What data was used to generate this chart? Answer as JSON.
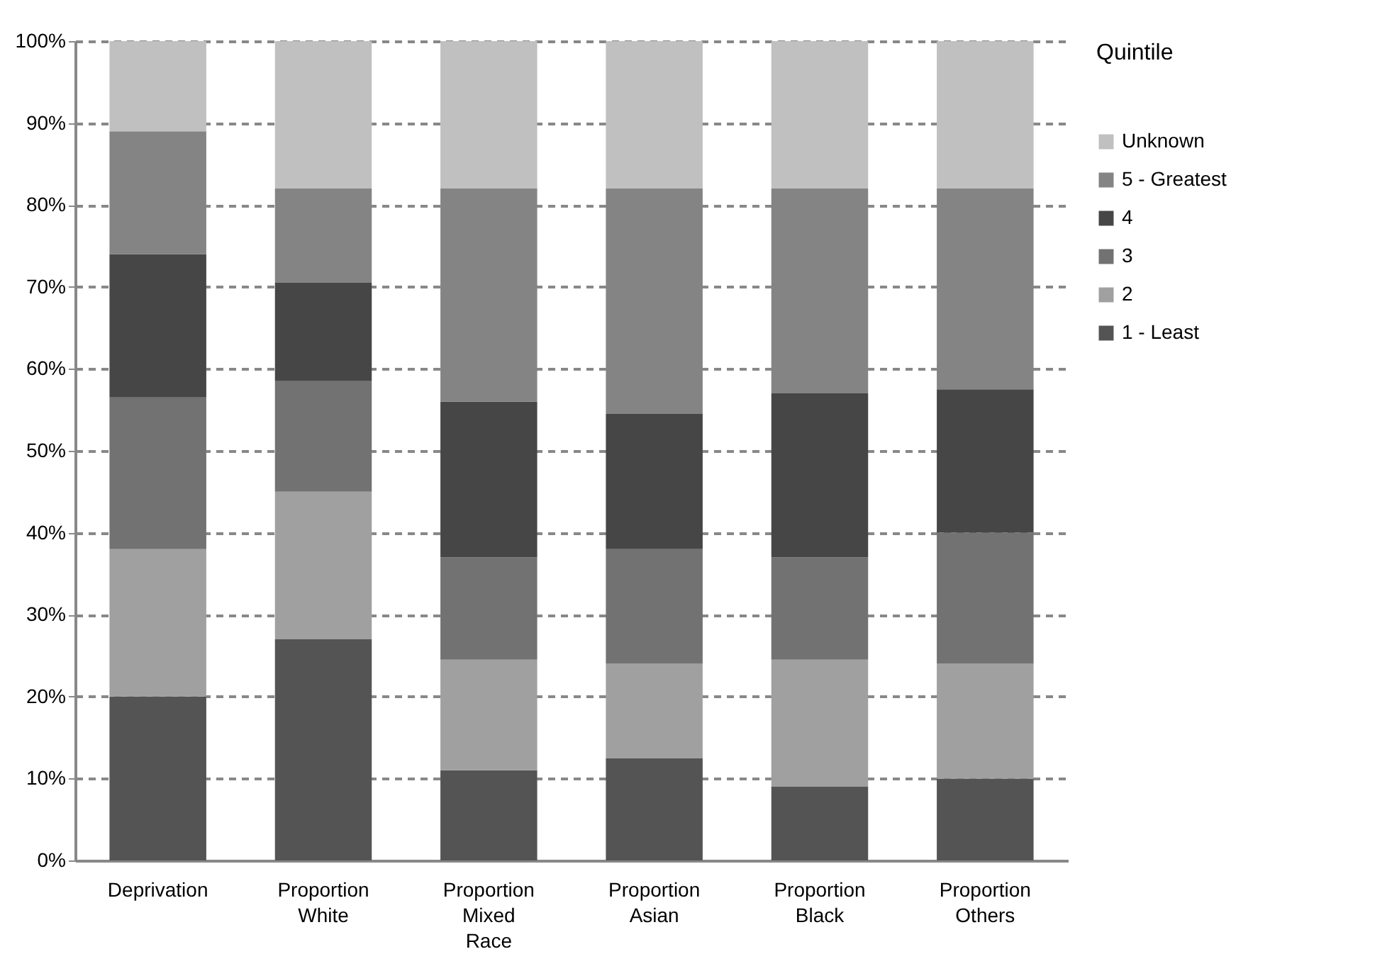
{
  "chart_data": {
    "type": "bar",
    "stacked": true,
    "categories": [
      "Deprivation",
      "Proportion White",
      "Proportion Mixed Race",
      "Proportion Asian",
      "Proportion Black",
      "Proportion Others"
    ],
    "series": [
      {
        "name": "1 - Least",
        "color": "#545454",
        "values": [
          20,
          27,
          11,
          12.5,
          9,
          10
        ]
      },
      {
        "name": "2",
        "color": "#a0a0a0",
        "values": [
          18,
          18,
          13.5,
          11.5,
          15.5,
          14
        ]
      },
      {
        "name": "3",
        "color": "#727272",
        "values": [
          18.5,
          13.5,
          12.5,
          14,
          12.5,
          16
        ]
      },
      {
        "name": "4",
        "color": "#464646",
        "values": [
          17.5,
          12,
          19,
          16.5,
          20,
          17.5
        ]
      },
      {
        "name": "5 - Greatest",
        "color": "#848484",
        "values": [
          15,
          11.5,
          26,
          27.5,
          25,
          24.5
        ]
      },
      {
        "name": "Unknown",
        "color": "#c0c0c0",
        "values": [
          11,
          18,
          18,
          18,
          18,
          18
        ]
      }
    ],
    "legend_title": "Quintile",
    "legend": "right",
    "ylim": [
      0,
      100
    ],
    "yticks": [
      {
        "value": 0,
        "label": "0%"
      },
      {
        "value": 10,
        "label": "10%"
      },
      {
        "value": 20,
        "label": "20%"
      },
      {
        "value": 30,
        "label": "30%"
      },
      {
        "value": 40,
        "label": "40%"
      },
      {
        "value": 50,
        "label": "50%"
      },
      {
        "value": 60,
        "label": "60%"
      },
      {
        "value": 70,
        "label": "70%"
      },
      {
        "value": 80,
        "label": "80%"
      },
      {
        "value": 90,
        "label": "90%"
      },
      {
        "value": 100,
        "label": "100%"
      }
    ],
    "grid": "y"
  }
}
